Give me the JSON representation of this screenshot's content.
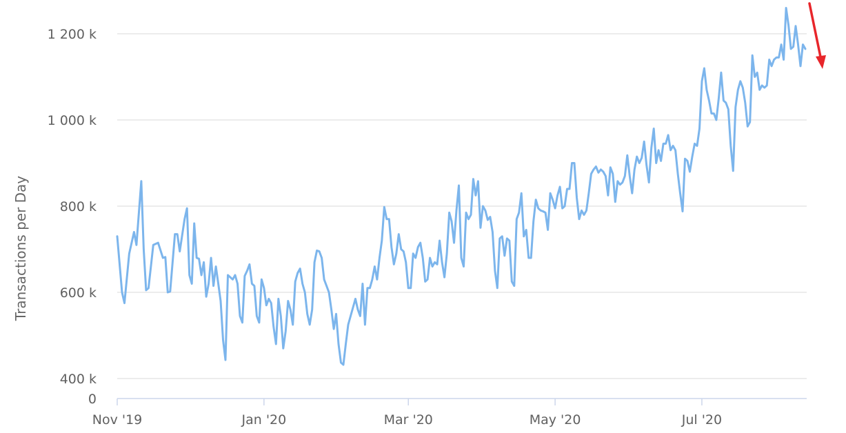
{
  "chart_data": {
    "type": "line",
    "title": "",
    "xlabel": "",
    "ylabel": "Transactions per Day",
    "ytick_labels": [
      "0",
      "400 k",
      "600 k",
      "800 k",
      "1 000 k",
      "1 200 k"
    ],
    "xtick_labels": [
      "Nov '19",
      "Jan '20",
      "Mar '20",
      "May '20",
      "Jul '20"
    ],
    "grid": "horizontal",
    "series_color": "#7cb5ec",
    "annotation_color": "#e8262b",
    "series": [
      {
        "values": [
          [
            0,
            730
          ],
          [
            2,
            600
          ],
          [
            3,
            575
          ],
          [
            5,
            690
          ],
          [
            7,
            740
          ],
          [
            8,
            710
          ],
          [
            10,
            858
          ],
          [
            11,
            700
          ],
          [
            12,
            605
          ],
          [
            13,
            610
          ],
          [
            15,
            710
          ],
          [
            17,
            715
          ],
          [
            19,
            680
          ],
          [
            20,
            682
          ],
          [
            21,
            600
          ],
          [
            22,
            602
          ],
          [
            24,
            735
          ],
          [
            25,
            735
          ],
          [
            26,
            695
          ],
          [
            28,
            770
          ],
          [
            29,
            795
          ],
          [
            30,
            640
          ],
          [
            31,
            620
          ],
          [
            32,
            760
          ],
          [
            33,
            680
          ],
          [
            34,
            678
          ],
          [
            35,
            640
          ],
          [
            36,
            670
          ],
          [
            37,
            590
          ],
          [
            38,
            620
          ],
          [
            39,
            680
          ],
          [
            40,
            615
          ],
          [
            41,
            660
          ],
          [
            42,
            620
          ],
          [
            43,
            580
          ],
          [
            44,
            490
          ],
          [
            45,
            443
          ],
          [
            46,
            640
          ],
          [
            47,
            635
          ],
          [
            48,
            630
          ],
          [
            49,
            640
          ],
          [
            50,
            620
          ],
          [
            51,
            545
          ],
          [
            52,
            530
          ],
          [
            53,
            638
          ],
          [
            54,
            650
          ],
          [
            55,
            665
          ],
          [
            56,
            620
          ],
          [
            57,
            615
          ],
          [
            58,
            545
          ],
          [
            59,
            530
          ],
          [
            60,
            630
          ],
          [
            61,
            610
          ],
          [
            62,
            570
          ],
          [
            63,
            585
          ],
          [
            64,
            575
          ],
          [
            65,
            520
          ],
          [
            66,
            480
          ],
          [
            67,
            585
          ],
          [
            68,
            545
          ],
          [
            69,
            470
          ],
          [
            70,
            510
          ],
          [
            71,
            580
          ],
          [
            72,
            560
          ],
          [
            73,
            525
          ],
          [
            74,
            625
          ],
          [
            75,
            645
          ],
          [
            76,
            655
          ],
          [
            77,
            620
          ],
          [
            78,
            600
          ],
          [
            79,
            550
          ],
          [
            80,
            525
          ],
          [
            81,
            560
          ],
          [
            82,
            670
          ],
          [
            83,
            697
          ],
          [
            84,
            695
          ],
          [
            85,
            680
          ],
          [
            86,
            630
          ],
          [
            87,
            615
          ],
          [
            88,
            600
          ],
          [
            89,
            560
          ],
          [
            90,
            515
          ],
          [
            91,
            550
          ],
          [
            92,
            480
          ],
          [
            93,
            437
          ],
          [
            94,
            432
          ],
          [
            95,
            480
          ],
          [
            96,
            525
          ],
          [
            97,
            545
          ],
          [
            98,
            565
          ],
          [
            99,
            585
          ],
          [
            100,
            560
          ],
          [
            101,
            545
          ],
          [
            102,
            620
          ],
          [
            103,
            525
          ],
          [
            104,
            610
          ],
          [
            105,
            610
          ],
          [
            106,
            630
          ],
          [
            107,
            660
          ],
          [
            108,
            630
          ],
          [
            109,
            680
          ],
          [
            110,
            720
          ],
          [
            111,
            798
          ],
          [
            112,
            770
          ],
          [
            113,
            770
          ],
          [
            114,
            705
          ],
          [
            115,
            665
          ],
          [
            116,
            690
          ],
          [
            117,
            735
          ],
          [
            118,
            700
          ],
          [
            119,
            695
          ],
          [
            120,
            670
          ],
          [
            121,
            610
          ],
          [
            122,
            610
          ],
          [
            123,
            690
          ],
          [
            124,
            680
          ],
          [
            125,
            705
          ],
          [
            126,
            715
          ],
          [
            127,
            680
          ],
          [
            128,
            625
          ],
          [
            129,
            630
          ],
          [
            130,
            680
          ],
          [
            131,
            660
          ],
          [
            132,
            670
          ],
          [
            133,
            665
          ],
          [
            134,
            720
          ],
          [
            135,
            670
          ],
          [
            136,
            635
          ],
          [
            137,
            690
          ],
          [
            138,
            785
          ],
          [
            139,
            765
          ],
          [
            140,
            715
          ],
          [
            141,
            790
          ],
          [
            142,
            848
          ],
          [
            143,
            680
          ],
          [
            144,
            660
          ],
          [
            145,
            785
          ],
          [
            146,
            770
          ],
          [
            147,
            780
          ],
          [
            148,
            863
          ],
          [
            149,
            825
          ],
          [
            150,
            858
          ],
          [
            151,
            750
          ],
          [
            152,
            800
          ],
          [
            153,
            790
          ],
          [
            154,
            768
          ],
          [
            155,
            775
          ],
          [
            156,
            740
          ],
          [
            157,
            650
          ],
          [
            158,
            610
          ],
          [
            159,
            725
          ],
          [
            160,
            730
          ],
          [
            161,
            685
          ],
          [
            162,
            725
          ],
          [
            163,
            720
          ],
          [
            164,
            625
          ],
          [
            165,
            615
          ],
          [
            166,
            770
          ],
          [
            167,
            785
          ],
          [
            168,
            830
          ],
          [
            169,
            730
          ],
          [
            170,
            745
          ],
          [
            171,
            680
          ],
          [
            172,
            680
          ],
          [
            173,
            765
          ],
          [
            174,
            815
          ],
          [
            175,
            795
          ],
          [
            176,
            790
          ],
          [
            177,
            788
          ],
          [
            178,
            785
          ],
          [
            179,
            745
          ],
          [
            180,
            830
          ],
          [
            181,
            815
          ],
          [
            182,
            795
          ],
          [
            183,
            825
          ],
          [
            184,
            845
          ],
          [
            185,
            795
          ],
          [
            186,
            800
          ],
          [
            187,
            840
          ],
          [
            188,
            840
          ],
          [
            189,
            900
          ],
          [
            190,
            900
          ],
          [
            191,
            820
          ],
          [
            192,
            770
          ],
          [
            193,
            790
          ],
          [
            194,
            780
          ],
          [
            195,
            790
          ],
          [
            196,
            830
          ],
          [
            197,
            875
          ],
          [
            198,
            885
          ],
          [
            199,
            892
          ],
          [
            200,
            878
          ],
          [
            201,
            885
          ],
          [
            202,
            880
          ],
          [
            203,
            870
          ],
          [
            204,
            825
          ],
          [
            205,
            890
          ],
          [
            206,
            875
          ],
          [
            207,
            810
          ],
          [
            208,
            858
          ],
          [
            209,
            850
          ],
          [
            210,
            855
          ],
          [
            211,
            870
          ],
          [
            212,
            918
          ],
          [
            213,
            870
          ],
          [
            214,
            830
          ],
          [
            215,
            885
          ],
          [
            216,
            915
          ],
          [
            217,
            900
          ],
          [
            218,
            912
          ],
          [
            219,
            950
          ],
          [
            220,
            895
          ],
          [
            221,
            855
          ],
          [
            222,
            935
          ],
          [
            223,
            980
          ],
          [
            224,
            900
          ],
          [
            225,
            930
          ],
          [
            226,
            905
          ],
          [
            227,
            945
          ],
          [
            228,
            945
          ],
          [
            229,
            965
          ],
          [
            230,
            930
          ],
          [
            231,
            940
          ],
          [
            232,
            930
          ],
          [
            233,
            875
          ],
          [
            234,
            830
          ],
          [
            235,
            788
          ],
          [
            236,
            910
          ],
          [
            237,
            905
          ],
          [
            238,
            880
          ],
          [
            239,
            915
          ],
          [
            240,
            945
          ],
          [
            241,
            940
          ],
          [
            242,
            980
          ],
          [
            243,
            1090
          ],
          [
            244,
            1120
          ],
          [
            245,
            1070
          ],
          [
            246,
            1045
          ],
          [
            247,
            1015
          ],
          [
            248,
            1015
          ],
          [
            249,
            1000
          ],
          [
            250,
            1050
          ],
          [
            251,
            1110
          ],
          [
            252,
            1045
          ],
          [
            253,
            1040
          ],
          [
            254,
            1025
          ],
          [
            255,
            940
          ],
          [
            256,
            882
          ],
          [
            257,
            1030
          ],
          [
            258,
            1070
          ],
          [
            259,
            1090
          ],
          [
            260,
            1075
          ],
          [
            261,
            1040
          ],
          [
            262,
            985
          ],
          [
            263,
            995
          ],
          [
            264,
            1150
          ],
          [
            265,
            1100
          ],
          [
            266,
            1110
          ],
          [
            267,
            1070
          ],
          [
            268,
            1080
          ],
          [
            269,
            1075
          ],
          [
            270,
            1080
          ],
          [
            271,
            1140
          ],
          [
            272,
            1125
          ],
          [
            273,
            1140
          ],
          [
            274,
            1145
          ],
          [
            275,
            1145
          ],
          [
            276,
            1175
          ],
          [
            277,
            1140
          ],
          [
            278,
            1260
          ],
          [
            279,
            1220
          ],
          [
            280,
            1165
          ],
          [
            281,
            1170
          ],
          [
            282,
            1218
          ],
          [
            283,
            1175
          ],
          [
            284,
            1125
          ],
          [
            285,
            1175
          ],
          [
            286,
            1165
          ]
        ]
      }
    ]
  }
}
